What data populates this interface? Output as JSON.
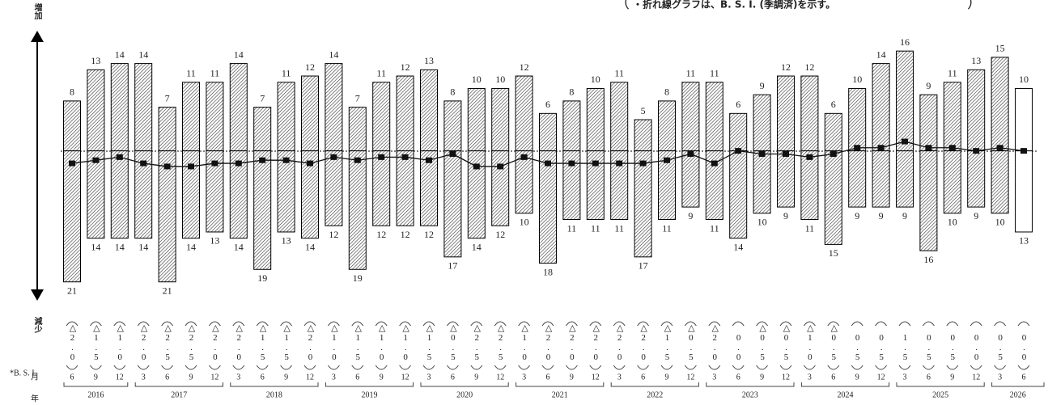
{
  "chart_data": {
    "type": "bsi",
    "note": "・折れ線グラフは、B. S. I. (季調済)を示す。",
    "year_groups": [
      {
        "label": "2016",
        "months": [
          "6",
          "9",
          "12"
        ]
      },
      {
        "label": "2017",
        "months": [
          "3",
          "6",
          "9",
          "12"
        ]
      },
      {
        "label": "2018",
        "months": [
          "3",
          "6",
          "9",
          "12"
        ]
      },
      {
        "label": "2019",
        "months": [
          "3",
          "6",
          "9",
          "12"
        ]
      },
      {
        "label": "2020",
        "months": [
          "3",
          "6",
          "9",
          "12"
        ]
      },
      {
        "label": "2021",
        "months": [
          "3",
          "6",
          "9",
          "12"
        ]
      },
      {
        "label": "2022",
        "months": [
          "3",
          "6",
          "9",
          "12"
        ]
      },
      {
        "label": "2023",
        "months": [
          "3",
          "6",
          "9",
          "12"
        ]
      },
      {
        "label": "2024",
        "months": [
          "3",
          "6",
          "9",
          "12"
        ]
      },
      {
        "label": "2025",
        "months": [
          "3",
          "6",
          "9",
          "12"
        ]
      },
      {
        "label": "2026",
        "months": [
          "3",
          "6"
        ]
      }
    ],
    "month_row_label": "月",
    "year_row_label": "年",
    "series": [
      {
        "name": "増加",
        "direction": "up",
        "values": [
          8,
          13,
          14,
          14,
          7,
          11,
          11,
          14,
          7,
          11,
          12,
          14,
          7,
          11,
          12,
          13,
          8,
          10,
          10,
          12,
          6,
          8,
          10,
          11,
          5,
          8,
          11,
          11,
          6,
          9,
          12,
          12,
          6,
          10,
          14,
          16,
          9,
          11,
          13,
          15,
          10
        ]
      },
      {
        "name": "減少",
        "direction": "down",
        "values": [
          21,
          14,
          14,
          14,
          21,
          14,
          13,
          14,
          19,
          13,
          14,
          12,
          19,
          12,
          12,
          12,
          17,
          14,
          12,
          10,
          18,
          11,
          11,
          11,
          17,
          11,
          9,
          11,
          14,
          10,
          9,
          11,
          15,
          9,
          9,
          9,
          16,
          10,
          9,
          10,
          13
        ]
      },
      {
        "name": "*B. S. I.",
        "color": "#111111",
        "values": [
          -2.0,
          -1.5,
          -1.0,
          -2.0,
          -2.5,
          -2.5,
          -2.0,
          -2.0,
          -1.5,
          -1.5,
          -2.0,
          -1.0,
          -1.5,
          -1.0,
          -1.0,
          -1.5,
          -0.5,
          -2.5,
          -2.5,
          -1.0,
          -2.0,
          -2.0,
          -2.0,
          -2.0,
          -2.0,
          -1.5,
          -0.5,
          -2.0,
          0.0,
          -0.5,
          -0.5,
          -1.0,
          -0.5,
          0.5,
          0.5,
          1.5,
          0.5,
          0.5,
          0.0,
          0.5,
          0.0
        ],
        "value_labels": [
          "△2.0",
          "△1.5",
          "△1.0",
          "△2.0",
          "△2.5",
          "△2.5",
          "△2.0",
          "△2.0",
          "△1.5",
          "△1.5",
          "△2.0",
          "△1.0",
          "△1.5",
          "△1.0",
          "△1.0",
          "△1.5",
          "△0.5",
          "△2.5",
          "△2.5",
          "△1.0",
          "△2.0",
          "△2.0",
          "△2.0",
          "△2.0",
          "△2.0",
          "△1.5",
          "△0.5",
          "△2.0",
          "0.0",
          "△0.5",
          "△0.5",
          "△1.0",
          "△0.5",
          "0.5",
          "0.5",
          "1.5",
          "0.5",
          "0.5",
          "0.0",
          "0.5",
          "0.0"
        ]
      }
    ],
    "bar_fill": "hatch",
    "last_bar_fill": "#ffffff",
    "ylim": [
      -23.5,
      19
    ]
  }
}
